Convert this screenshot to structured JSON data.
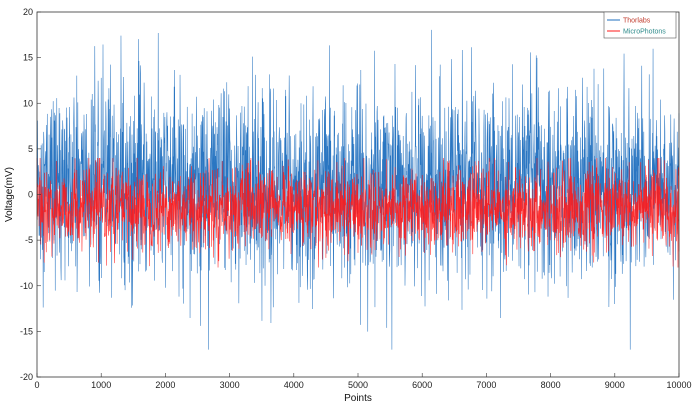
{
  "chart_data": {
    "type": "line",
    "xlabel": "Points",
    "ylabel": "Voltage(mV)",
    "xlim": [
      0,
      10000
    ],
    "ylim": [
      -20,
      20
    ],
    "xticks": [
      0,
      1000,
      2000,
      3000,
      4000,
      5000,
      6000,
      7000,
      8000,
      9000,
      10000
    ],
    "yticks": [
      -20,
      -15,
      -10,
      -5,
      0,
      5,
      10,
      15,
      20
    ],
    "legend_position": "top-right",
    "grid": false,
    "num_points": 10000,
    "series": [
      {
        "name": "Thorlabs",
        "color": "#1f6fbf",
        "legend_text_color": "#c0392b",
        "noise_mean": 1.0,
        "noise_std": 6.0,
        "range": [
          -17,
          20
        ]
      },
      {
        "name": "MicroPhotons",
        "color": "#ff1a1a",
        "legend_text_color": "#2e8b8b",
        "noise_mean": -1.5,
        "noise_std": 2.5,
        "range": [
          -8,
          4
        ]
      }
    ]
  }
}
